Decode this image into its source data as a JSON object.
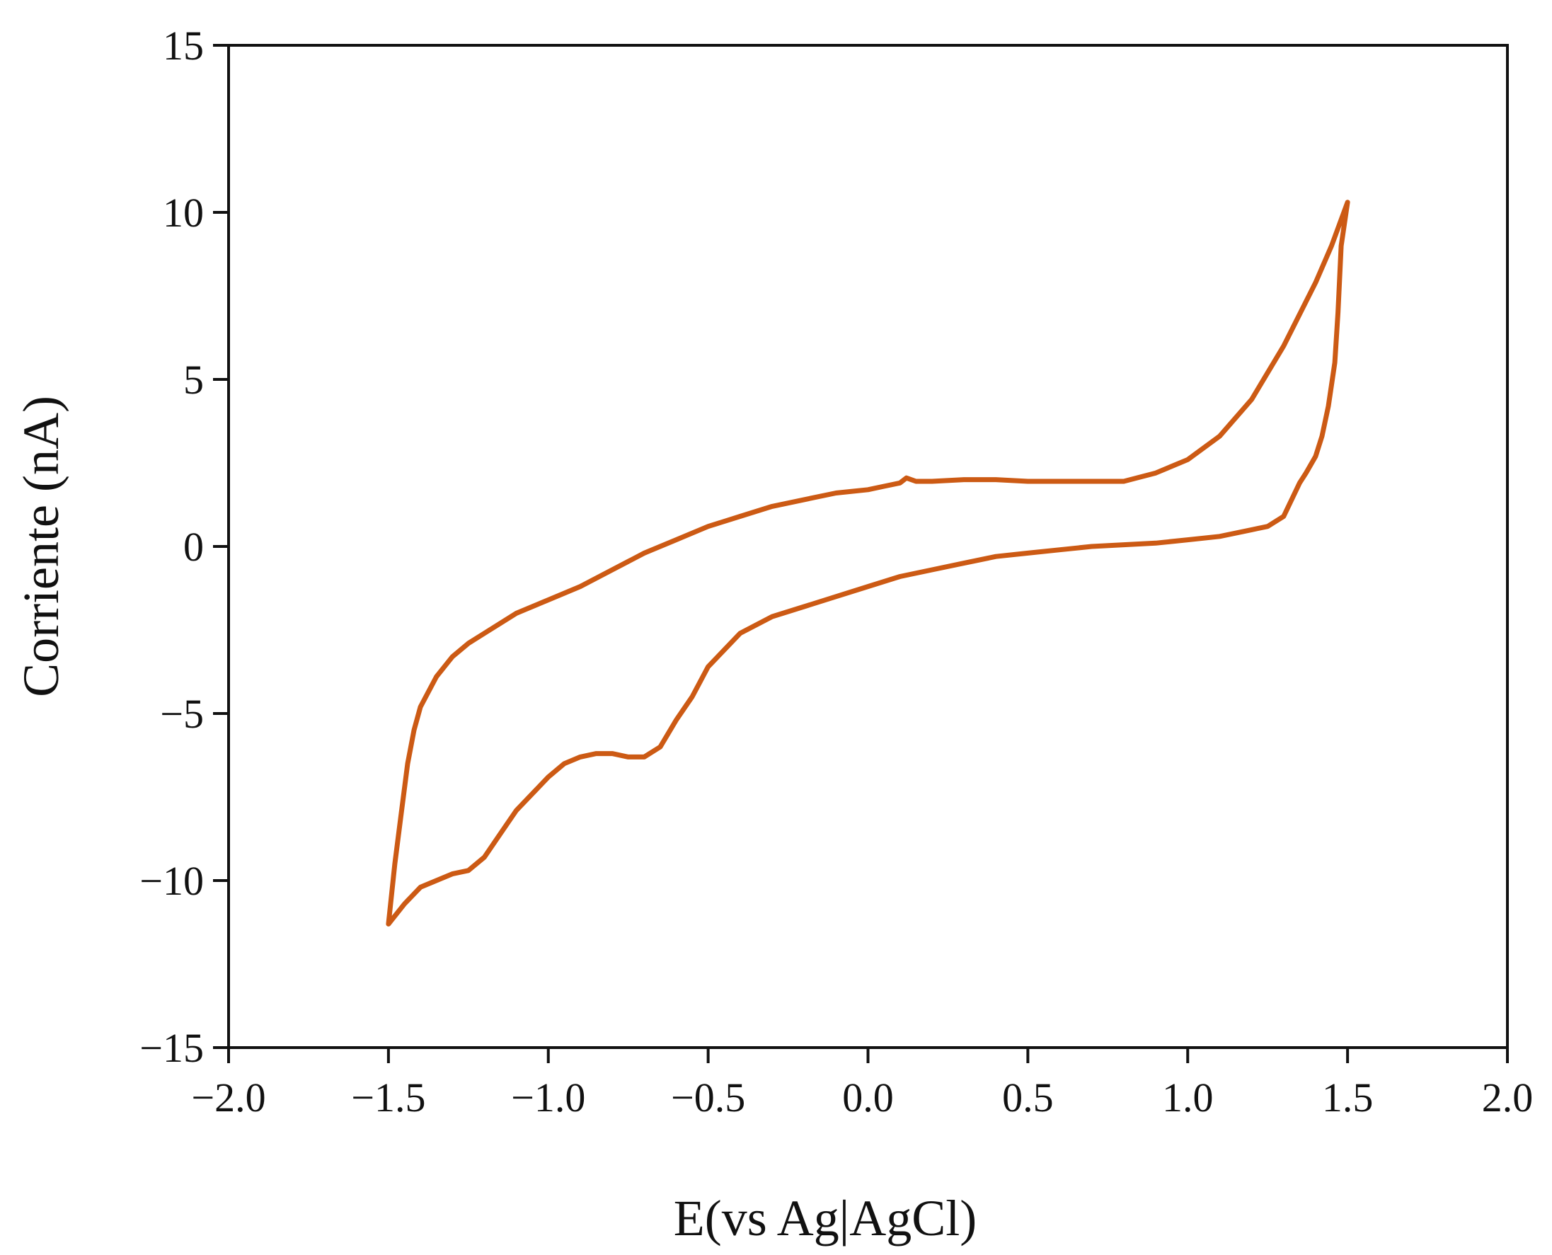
{
  "chart_data": {
    "type": "line",
    "title": "",
    "xlabel": "E(vs Ag|AgCl)",
    "ylabel": "Corriente (nA)",
    "xlim": [
      -2.0,
      2.0
    ],
    "ylim": [
      -15,
      15
    ],
    "x_ticks": [
      "−2.0",
      "−1.5",
      "−1.0",
      "−0.5",
      "0.0",
      "0.5",
      "1.0",
      "1.5",
      "2.0"
    ],
    "y_ticks": [
      "15",
      "10",
      "5",
      "0",
      "−5",
      "−10",
      "−15"
    ],
    "grid": false,
    "legend": "none",
    "series": [
      {
        "color": "#cc5a14",
        "points": [
          [
            1.35,
            1.9
          ],
          [
            1.3,
            0.9
          ],
          [
            1.25,
            0.6
          ],
          [
            1.2,
            0.5
          ],
          [
            1.1,
            0.3
          ],
          [
            1.0,
            0.2
          ],
          [
            0.9,
            0.1
          ],
          [
            0.8,
            0.05
          ],
          [
            0.7,
            0.0
          ],
          [
            0.6,
            -0.1
          ],
          [
            0.5,
            -0.2
          ],
          [
            0.4,
            -0.3
          ],
          [
            0.3,
            -0.5
          ],
          [
            0.2,
            -0.7
          ],
          [
            0.1,
            -0.9
          ],
          [
            0.0,
            -1.2
          ],
          [
            -0.1,
            -1.5
          ],
          [
            -0.2,
            -1.8
          ],
          [
            -0.3,
            -2.1
          ],
          [
            -0.4,
            -2.6
          ],
          [
            -0.45,
            -3.1
          ],
          [
            -0.5,
            -3.6
          ],
          [
            -0.55,
            -4.5
          ],
          [
            -0.6,
            -5.2
          ],
          [
            -0.65,
            -6.0
          ],
          [
            -0.7,
            -6.3
          ],
          [
            -0.75,
            -6.3
          ],
          [
            -0.8,
            -6.2
          ],
          [
            -0.85,
            -6.2
          ],
          [
            -0.9,
            -6.3
          ],
          [
            -0.95,
            -6.5
          ],
          [
            -1.0,
            -6.9
          ],
          [
            -1.05,
            -7.4
          ],
          [
            -1.1,
            -7.9
          ],
          [
            -1.15,
            -8.6
          ],
          [
            -1.2,
            -9.3
          ],
          [
            -1.25,
            -9.7
          ],
          [
            -1.3,
            -9.8
          ],
          [
            -1.35,
            -10.0
          ],
          [
            -1.4,
            -10.2
          ],
          [
            -1.45,
            -10.7
          ],
          [
            -1.5,
            -11.3
          ],
          [
            -1.48,
            -9.5
          ],
          [
            -1.46,
            -8.0
          ],
          [
            -1.44,
            -6.5
          ],
          [
            -1.42,
            -5.5
          ],
          [
            -1.4,
            -4.8
          ],
          [
            -1.35,
            -3.9
          ],
          [
            -1.3,
            -3.3
          ],
          [
            -1.25,
            -2.9
          ],
          [
            -1.2,
            -2.6
          ],
          [
            -1.1,
            -2.0
          ],
          [
            -1.0,
            -1.6
          ],
          [
            -0.9,
            -1.2
          ],
          [
            -0.8,
            -0.7
          ],
          [
            -0.7,
            -0.2
          ],
          [
            -0.6,
            0.2
          ],
          [
            -0.5,
            0.6
          ],
          [
            -0.4,
            0.9
          ],
          [
            -0.3,
            1.2
          ],
          [
            -0.2,
            1.4
          ],
          [
            -0.1,
            1.6
          ],
          [
            0.0,
            1.7
          ],
          [
            0.05,
            1.8
          ],
          [
            0.1,
            1.9
          ],
          [
            0.12,
            2.05
          ],
          [
            0.15,
            1.95
          ],
          [
            0.2,
            1.95
          ],
          [
            0.3,
            2.0
          ],
          [
            0.4,
            2.0
          ],
          [
            0.5,
            1.95
          ],
          [
            0.6,
            1.95
          ],
          [
            0.7,
            1.95
          ],
          [
            0.8,
            1.95
          ],
          [
            0.9,
            2.2
          ],
          [
            1.0,
            2.6
          ],
          [
            1.1,
            3.3
          ],
          [
            1.2,
            4.4
          ],
          [
            1.3,
            6.0
          ],
          [
            1.4,
            7.9
          ],
          [
            1.45,
            9.0
          ],
          [
            1.5,
            10.3
          ],
          [
            1.48,
            9.0
          ],
          [
            1.47,
            7.0
          ],
          [
            1.46,
            5.5
          ],
          [
            1.44,
            4.2
          ],
          [
            1.42,
            3.3
          ],
          [
            1.4,
            2.7
          ],
          [
            1.37,
            2.2
          ],
          [
            1.35,
            1.9
          ]
        ]
      }
    ]
  }
}
